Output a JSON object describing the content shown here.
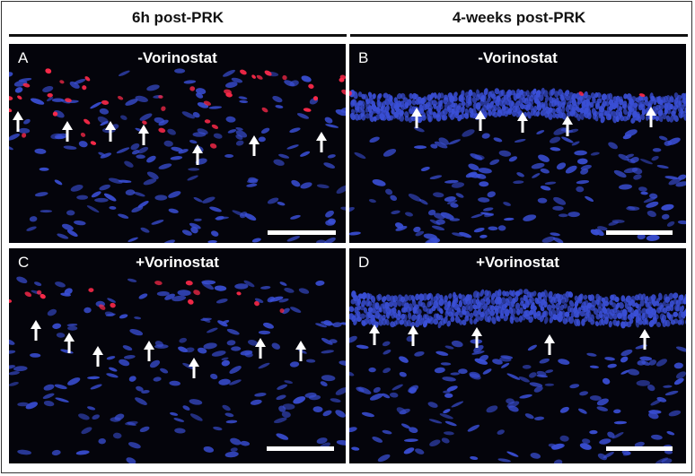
{
  "columns": [
    {
      "label": "6h post-PRK"
    },
    {
      "label": "4-weeks post-PRK"
    }
  ],
  "panels": [
    {
      "letter": "A",
      "condition": "-Vorinostat"
    },
    {
      "letter": "B",
      "condition": "-Vorinostat"
    },
    {
      "letter": "C",
      "condition": "+Vorinostat"
    },
    {
      "letter": "D",
      "condition": "+Vorinostat"
    }
  ],
  "colors": {
    "background": "#04040b",
    "nuclei_blue": "#3a4fd6",
    "tunel_red": "#ff2a4a",
    "arrow": "#ffffff"
  }
}
